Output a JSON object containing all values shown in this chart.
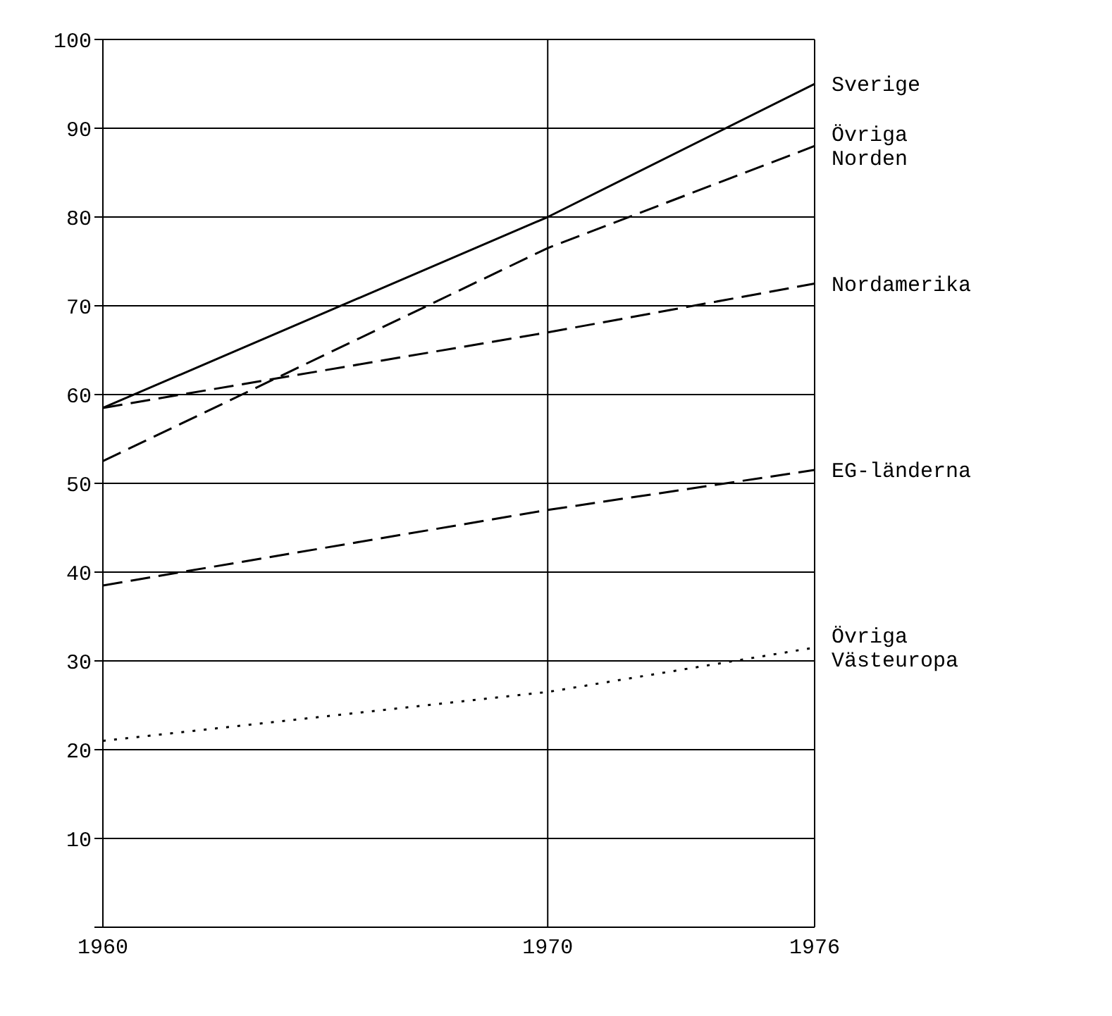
{
  "chart_data": {
    "type": "line",
    "x": [
      1960,
      1970,
      1976
    ],
    "xlim": [
      1960,
      1976
    ],
    "xticks": [
      1960,
      1970,
      1976
    ],
    "ylim": [
      0,
      100
    ],
    "yticks": [
      {
        "value": 0,
        "label": null
      },
      10,
      20,
      30,
      40,
      50,
      60,
      70,
      80,
      90,
      100
    ],
    "grid": true,
    "marker": "none",
    "series": [
      {
        "name": "Sverige",
        "color": "#000000",
        "line_style": "solid",
        "values": [
          58.5,
          80,
          95
        ]
      },
      {
        "name": "Övriga Norden",
        "color": "#000000",
        "line_style": "dashed",
        "values": [
          52.5,
          76.5,
          88
        ]
      },
      {
        "name": "Nordamerika",
        "color": "#000000",
        "line_style": "dashed",
        "values": [
          58.5,
          67,
          72.5
        ]
      },
      {
        "name": "EG-länderna",
        "color": "#000000",
        "line_style": "dashed",
        "values": [
          38.5,
          47,
          51.5
        ]
      },
      {
        "name": "Övriga Västeuropa",
        "color": "#000000",
        "line_style": "dotted",
        "values": [
          21,
          26.5,
          31.5
        ]
      }
    ]
  }
}
